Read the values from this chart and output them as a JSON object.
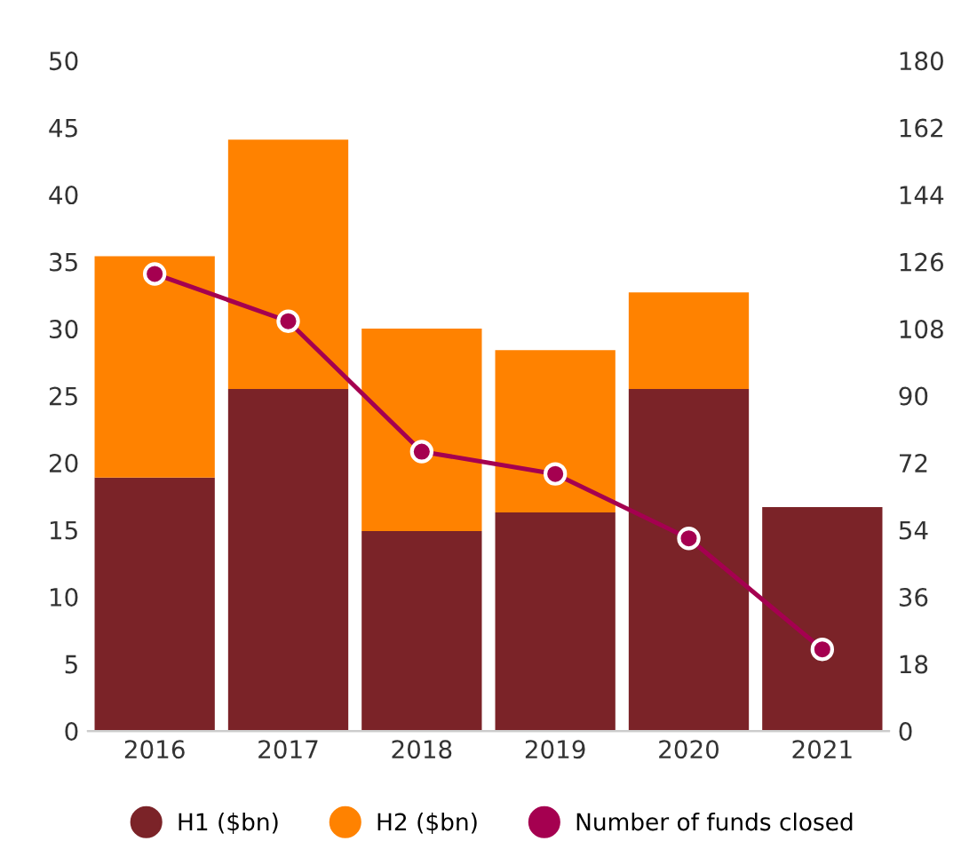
{
  "chart_data": {
    "type": "bar",
    "stacked": true,
    "categories": [
      "2016",
      "2017",
      "2018",
      "2019",
      "2020",
      "2021"
    ],
    "series": [
      {
        "name": "H1 ($bn)",
        "color": "#7b2328",
        "values": [
          18.9,
          25.5,
          14.9,
          16.3,
          25.5,
          16.7
        ]
      },
      {
        "name": "H2 ($bn)",
        "color": "#ff8200",
        "values": [
          16.5,
          18.6,
          15.1,
          12.1,
          7.2,
          0
        ]
      },
      {
        "name": "Number of funds closed",
        "type": "line",
        "axis": "y2",
        "color": "#a50050",
        "marker": "circle",
        "values": [
          122.7,
          110,
          75,
          69,
          51.7,
          21.9
        ]
      }
    ],
    "ylim": [
      0,
      50
    ],
    "yticks": [
      0,
      5,
      10,
      15,
      20,
      25,
      30,
      35,
      40,
      45,
      50
    ],
    "y2lim": [
      0,
      180
    ],
    "y2ticks": [
      0,
      18,
      36,
      54,
      72,
      90,
      108,
      126,
      144,
      162,
      180
    ],
    "grid": false,
    "legend": "bottom"
  }
}
